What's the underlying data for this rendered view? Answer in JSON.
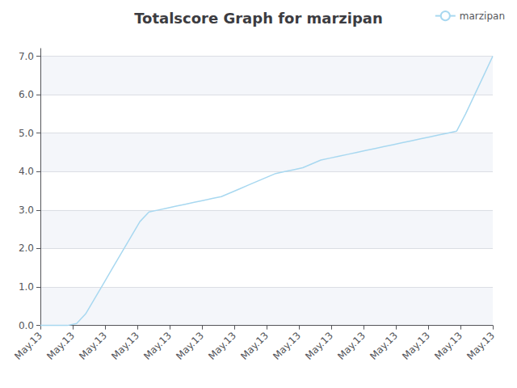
{
  "chart_data": {
    "type": "line",
    "title": "Totalscore Graph for marzipan",
    "x": [
      0,
      1,
      2,
      3,
      4,
      5,
      6,
      7,
      8,
      9,
      10,
      11,
      12,
      13,
      14,
      15,
      16,
      17,
      18,
      19,
      20,
      21,
      22,
      23,
      24,
      25,
      26,
      27,
      28,
      29,
      30,
      31,
      32,
      33,
      34,
      35,
      36,
      37,
      38,
      39,
      40,
      41,
      42,
      43,
      44,
      45,
      46,
      47,
      48,
      49,
      50
    ],
    "series": [
      {
        "name": "marzipan",
        "color": "#a8d8f0",
        "values": [
          0.0,
          0.0,
          0.0,
          0.0,
          0.05,
          0.3,
          0.7,
          1.1,
          1.5,
          1.9,
          2.3,
          2.7,
          2.95,
          3.0,
          3.05,
          3.1,
          3.15,
          3.2,
          3.25,
          3.3,
          3.35,
          3.45,
          3.55,
          3.65,
          3.75,
          3.85,
          3.95,
          4.0,
          4.05,
          4.1,
          4.2,
          4.3,
          4.35,
          4.4,
          4.45,
          4.5,
          4.55,
          4.6,
          4.65,
          4.7,
          4.75,
          4.8,
          4.85,
          4.9,
          4.95,
          5.0,
          5.05,
          5.5,
          6.0,
          6.5,
          7.0
        ]
      }
    ],
    "xlim": [
      0,
      50
    ],
    "xticks": [
      {
        "value": 0,
        "label": "May.13"
      },
      {
        "value": 3.5714285714285716,
        "label": "May.13"
      },
      {
        "value": 7.142857142857143,
        "label": "May.13"
      },
      {
        "value": 10.714285714285714,
        "label": "May.13"
      },
      {
        "value": 14.285714285714286,
        "label": "May.13"
      },
      {
        "value": 17.857142857142858,
        "label": "May.13"
      },
      {
        "value": 21.428571428571427,
        "label": "May.13"
      },
      {
        "value": 25.0,
        "label": "May.13"
      },
      {
        "value": 28.571428571428573,
        "label": "May.13"
      },
      {
        "value": 32.142857142857146,
        "label": "May.13"
      },
      {
        "value": 35.714285714285715,
        "label": "May.13"
      },
      {
        "value": 39.285714285714285,
        "label": "May.13"
      },
      {
        "value": 42.857142857142854,
        "label": "May.13"
      },
      {
        "value": 46.42857142857143,
        "label": "May.13"
      },
      {
        "value": 50.0,
        "label": "May.13"
      }
    ],
    "ylim": [
      -0.05,
      7.2
    ],
    "yticks": [
      {
        "value": 0,
        "label": "0.0"
      },
      {
        "value": 1,
        "label": "1.0"
      },
      {
        "value": 2,
        "label": "2.0"
      },
      {
        "value": 3,
        "label": "3.0"
      },
      {
        "value": 4,
        "label": "4.0"
      },
      {
        "value": 5,
        "label": "5.0"
      },
      {
        "value": 6,
        "label": "6.0"
      },
      {
        "value": 7,
        "label": "7.0"
      }
    ],
    "grid": true,
    "legend": "upper right"
  }
}
